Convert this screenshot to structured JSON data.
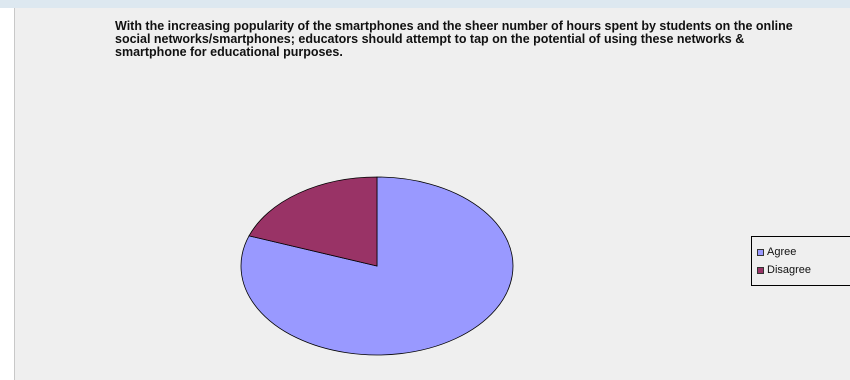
{
  "chart_data": {
    "type": "pie",
    "title": "With the increasing popularity of the smartphones and the sheer number of hours spent by students on the online social networks/smartphones; educators should attempt to tap on the potential of using these networks & smartphone for educational purposes.",
    "categories": [
      "Agree",
      "Disagree"
    ],
    "values": [
      80.5,
      19.5
    ],
    "colors": [
      "#9999ff",
      "#993366"
    ],
    "legend": {
      "position": "right",
      "entries": [
        "Agree",
        "Disagree"
      ]
    }
  }
}
